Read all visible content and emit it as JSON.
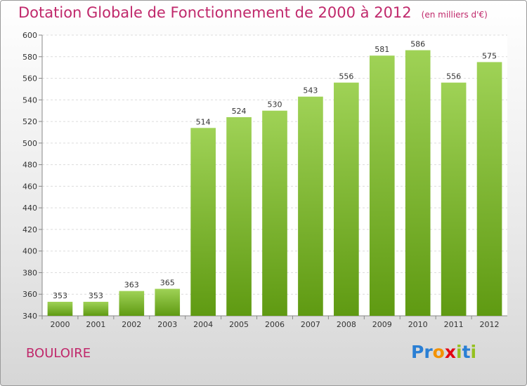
{
  "title": "Dotation Globale de Fonctionnement de 2000 à 2012",
  "subtitle": "(en milliers d'€)",
  "town": "BOULOIRE",
  "logo": "Proxiti",
  "colors": {
    "title": "#c0286b",
    "bar_top": "#9fd256",
    "bar_bottom": "#5f9a12"
  },
  "chart_data": {
    "type": "bar",
    "title": "Dotation Globale de Fonctionnement de 2000 à 2012",
    "subtitle": "(en milliers d'€)",
    "categories": [
      "2000",
      "2001",
      "2002",
      "2003",
      "2004",
      "2005",
      "2006",
      "2007",
      "2008",
      "2009",
      "2010",
      "2011",
      "2012"
    ],
    "values": [
      353,
      353,
      363,
      365,
      514,
      524,
      530,
      543,
      556,
      581,
      586,
      556,
      575
    ],
    "ylim": [
      340,
      600
    ],
    "yticks": [
      340,
      360,
      380,
      400,
      420,
      440,
      460,
      480,
      500,
      520,
      540,
      560,
      580,
      600
    ],
    "grid": true
  }
}
